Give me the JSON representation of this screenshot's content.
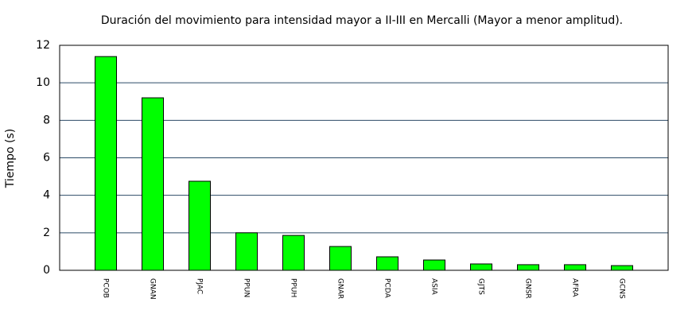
{
  "chart_data": {
    "type": "bar",
    "title": "Duración del movimiento para intensidad mayor a II-III en Mercalli (Mayor a menor amplitud).",
    "y_label": "Tiempo (s)",
    "categories": [
      "PCOB",
      "GNAN",
      "PJAC",
      "PPUN",
      "PPUH",
      "GNAR",
      "PCDA",
      "ASIA",
      "GJTS",
      "GNSR",
      "AFRA",
      "GCNS"
    ],
    "values": [
      11.4,
      9.2,
      4.75,
      2.0,
      1.86,
      1.27,
      0.72,
      0.55,
      0.34,
      0.3,
      0.3,
      0.25
    ],
    "color": "#00ff00",
    "ylim": [
      0,
      12
    ],
    "yticks": [
      0,
      2,
      4,
      6,
      8,
      10,
      12
    ],
    "grid": true
  }
}
